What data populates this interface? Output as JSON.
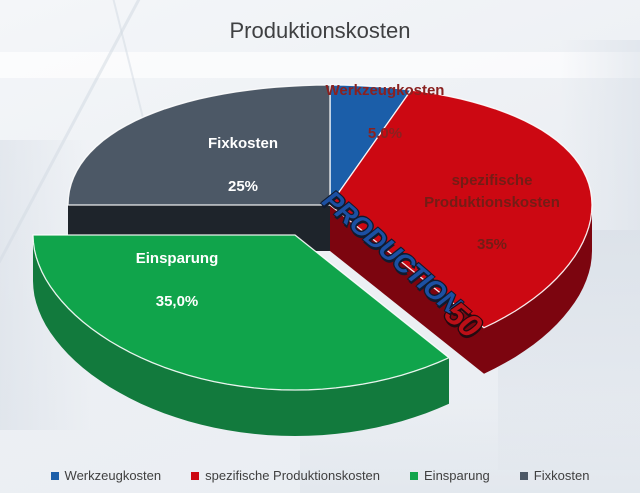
{
  "chart_data": {
    "type": "pie",
    "title": "Produktionskosten",
    "style": "3d-exploded-pie",
    "legend_position": "bottom",
    "slices": [
      {
        "label": "Werkzeugkosten",
        "value": 5,
        "display": "5,0%",
        "color": "#1b5ea9",
        "side_color": "#0f3b70",
        "label_color": "#8a2120",
        "exploded": false
      },
      {
        "label": "spezifische Produktionskosten",
        "value": 35,
        "display": "35%",
        "color": "#cc0812",
        "side_color": "#7c050f",
        "label_color": "#731d16",
        "exploded": false
      },
      {
        "label": "Einsparung",
        "value": 35,
        "display": "35,0%",
        "color": "#10a44b",
        "side_color": "#127a3d",
        "label_color": "#ffffff",
        "exploded": true
      },
      {
        "label": "Fixkosten",
        "value": 25,
        "display": "25%",
        "color": "#4c5866",
        "side_color": "#1e242b",
        "label_color": "#ffffff",
        "exploded": false
      }
    ]
  },
  "watermark": {
    "part1": "PRODUCTION",
    "part2": "50"
  }
}
